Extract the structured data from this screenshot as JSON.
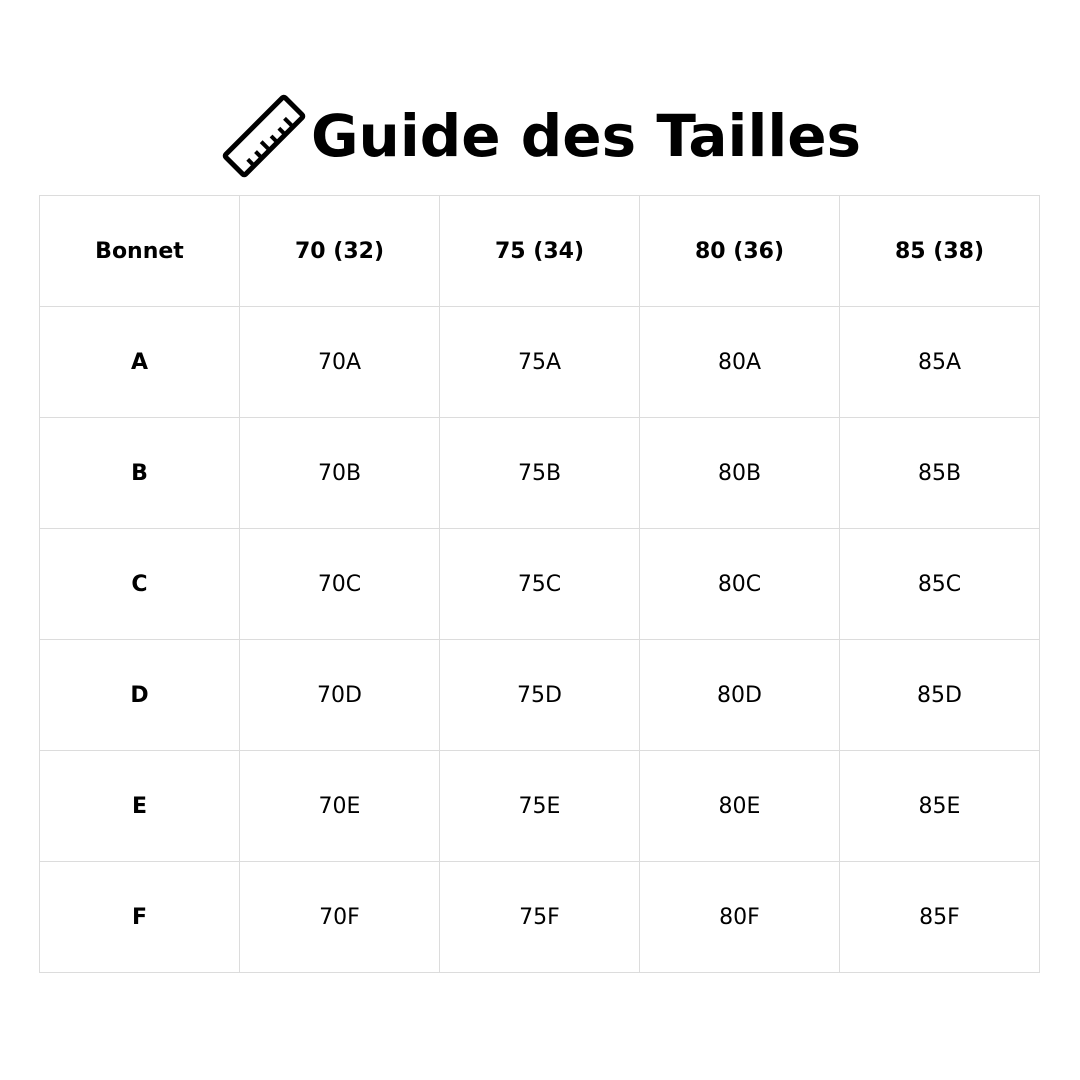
{
  "title": "Guide des Tailles",
  "icon": "ruler-icon",
  "table": {
    "headers": [
      "Bonnet",
      "70 (32)",
      "75 (34)",
      "80 (36)",
      "85 (38)"
    ],
    "rows": [
      [
        "A",
        "70A",
        "75A",
        "80A",
        "85A"
      ],
      [
        "B",
        "70B",
        "75B",
        "80B",
        "85B"
      ],
      [
        "C",
        "70C",
        "75C",
        "80C",
        "85C"
      ],
      [
        "D",
        "70D",
        "75D",
        "80D",
        "85D"
      ],
      [
        "E",
        "70E",
        "75E",
        "80E",
        "85E"
      ],
      [
        "F",
        "70F",
        "75F",
        "80F",
        "85F"
      ]
    ]
  }
}
